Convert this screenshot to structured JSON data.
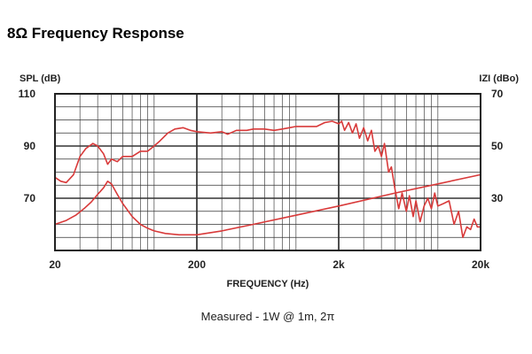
{
  "title": "8Ω Frequency Response",
  "chart_data": {
    "type": "line",
    "xlabel": "FREQUENCY (Hz)",
    "ylabel_left": "SPL (dB)",
    "ylabel_right": "IZI (dBo)",
    "x_scale": "log",
    "xlim": [
      20,
      20000
    ],
    "ylim_left": [
      50,
      110
    ],
    "ylim_right": [
      10,
      70
    ],
    "x_ticks": [
      {
        "value": 20,
        "label": "20"
      },
      {
        "value": 200,
        "label": "200"
      },
      {
        "value": 2000,
        "label": "2k"
      },
      {
        "value": 20000,
        "label": "20k"
      }
    ],
    "y_ticks_left": [
      {
        "value": 110,
        "label": "110"
      },
      {
        "value": 90,
        "label": "90"
      },
      {
        "value": 70,
        "label": "70"
      }
    ],
    "y_ticks_right": [
      {
        "value": 70,
        "label": "70"
      },
      {
        "value": 50,
        "label": "50"
      },
      {
        "value": 30,
        "label": "30"
      }
    ],
    "grid": true,
    "line_color": "#d83a3a",
    "annotation": "Measured - 1W @ 1m, 2π",
    "series": [
      {
        "axis": "left",
        "x": [
          20,
          22,
          24,
          27,
          30,
          33,
          37,
          40,
          44,
          47,
          50,
          55,
          60,
          70,
          80,
          90,
          100,
          110,
          125,
          140,
          160,
          180,
          200,
          250,
          300,
          330,
          380,
          450,
          500,
          600,
          700,
          800,
          900,
          1000,
          1200,
          1400,
          1600,
          1800,
          2000,
          2100,
          2200,
          2350,
          2500,
          2650,
          2800,
          3000,
          3200,
          3400,
          3600,
          3800,
          4000,
          4200,
          4500,
          4700,
          5000,
          5300,
          5600,
          6000,
          6300,
          6700,
          7000,
          7500,
          8000,
          8500,
          9000,
          9500,
          10000,
          11000,
          12000,
          13000,
          14000,
          15000,
          16000,
          17000,
          18000,
          19000,
          20000
        ],
        "y": [
          78,
          76.5,
          76,
          79,
          86,
          89,
          91,
          90,
          87,
          83,
          85,
          84,
          86,
          86,
          88,
          88,
          90,
          92,
          95,
          96.5,
          97,
          96,
          95.5,
          95,
          95.5,
          94.5,
          96,
          96,
          96.5,
          96.5,
          96,
          96.5,
          97,
          97.5,
          97.5,
          97.5,
          99,
          99.5,
          98.5,
          99.5,
          96,
          99,
          95,
          98.5,
          93,
          97,
          92,
          96,
          88,
          90,
          86,
          91,
          80,
          82,
          73,
          66,
          72,
          65,
          71,
          63,
          69,
          61,
          67,
          70,
          66,
          72,
          67,
          68,
          69,
          60,
          65,
          55,
          59,
          58,
          62,
          59,
          59
        ]
      },
      {
        "axis": "right",
        "x": [
          20,
          24,
          28,
          32,
          36,
          40,
          44,
          47,
          50,
          55,
          60,
          70,
          80,
          90,
          100,
          120,
          150,
          200,
          300,
          500,
          1000,
          2000,
          5000,
          10000,
          20000
        ],
        "y": [
          20,
          21.5,
          23.5,
          26,
          28.5,
          31.5,
          34,
          36.5,
          35.5,
          31.5,
          28,
          23,
          20,
          18.5,
          17.5,
          16.5,
          16,
          16,
          17.5,
          20,
          23.5,
          27,
          32,
          35.5,
          39
        ]
      }
    ]
  }
}
